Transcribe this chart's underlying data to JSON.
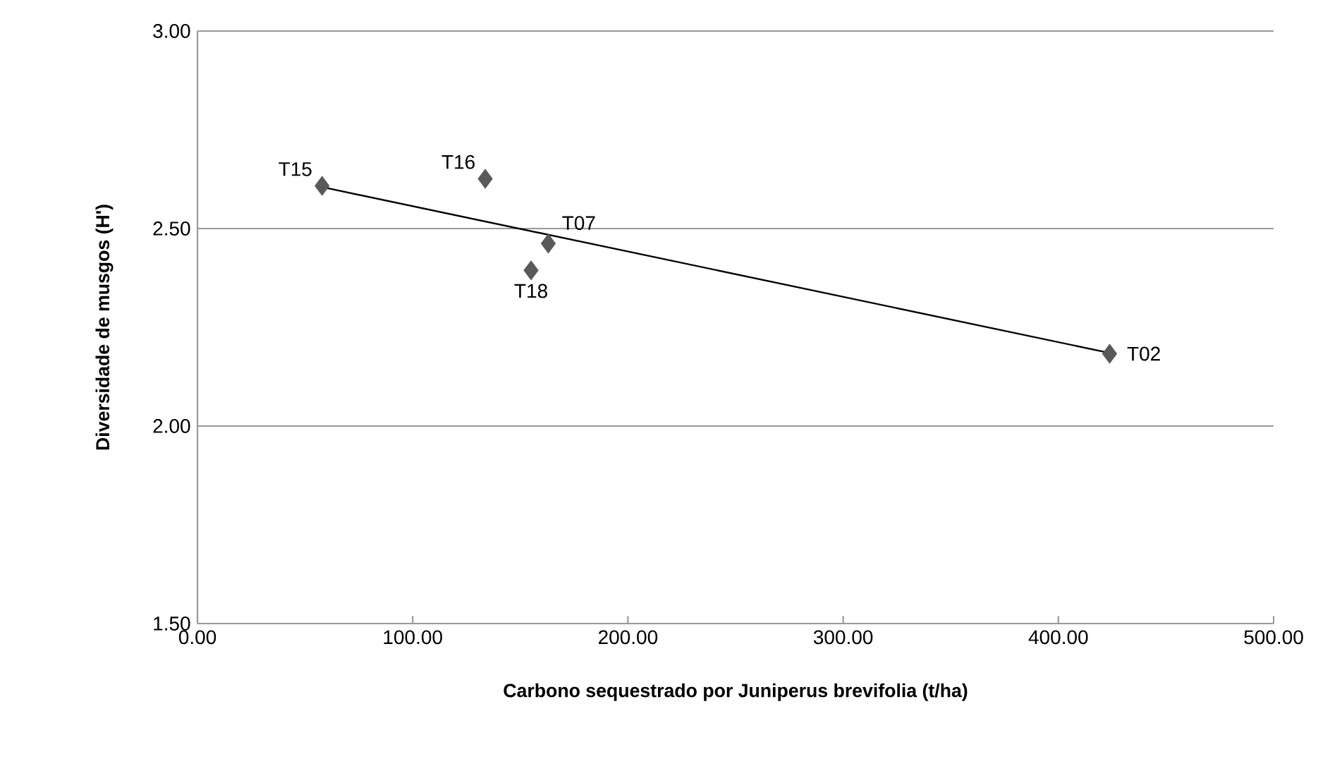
{
  "chart_data": {
    "type": "scatter",
    "xlabel": "Carbono sequestrado por Juniperus brevifolia (t/ha)",
    "ylabel": "Diversidade de musgos (H')",
    "xlim": [
      0,
      500
    ],
    "ylim": [
      1.5,
      3.0
    ],
    "xticks": [
      {
        "value": 0,
        "label": "0.00"
      },
      {
        "value": 100,
        "label": "100.00"
      },
      {
        "value": 200,
        "label": "200.00"
      },
      {
        "value": 300,
        "label": "300.00"
      },
      {
        "value": 400,
        "label": "400.00"
      },
      {
        "value": 500,
        "label": "500.00"
      }
    ],
    "yticks": [
      {
        "value": 1.5,
        "label": "1.50"
      },
      {
        "value": 2.0,
        "label": "2.00"
      },
      {
        "value": 2.5,
        "label": "2.50"
      },
      {
        "value": 3.0,
        "label": "3.00"
      }
    ],
    "grid": "y",
    "series": [
      {
        "color": "#595959",
        "marker": "diamond",
        "x": [
          57.9,
          133.7,
          163,
          155,
          423.8
        ],
        "values": [
          2.608,
          2.626,
          2.462,
          2.394,
          2.183
        ]
      },
      {
        "type": "line",
        "color": "#000000",
        "marker": "none",
        "line_style": "solid",
        "x": [
          57.9,
          423.8
        ],
        "values": [
          2.605,
          2.185
        ]
      }
    ],
    "annotations": [
      {
        "text": "T15",
        "x": 57.9,
        "y": 2.608
      },
      {
        "text": "T16",
        "x": 133.7,
        "y": 2.626
      },
      {
        "text": "T07",
        "x": 163,
        "y": 2.462
      },
      {
        "text": "T18",
        "x": 155,
        "y": 2.394
      },
      {
        "text": "T02",
        "x": 423.8,
        "y": 2.183
      }
    ]
  }
}
